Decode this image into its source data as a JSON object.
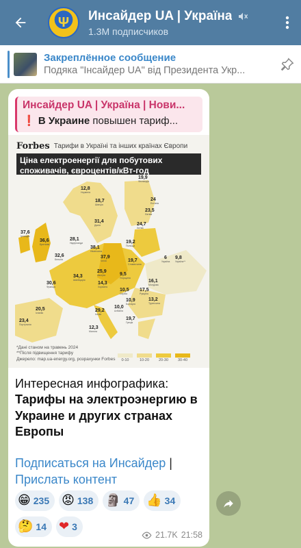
{
  "header": {
    "title": "Инсайдер UA | Україна",
    "subtitle": "1.3M подписчиков"
  },
  "pinned": {
    "title": "Закреплённое сообщение",
    "body": "Подяка \"Інсайдер UA\" від Президента Укр..."
  },
  "post": {
    "reply": {
      "title": "Инсайдер UA | Україна | Нови...",
      "emoji": "❗",
      "bold": "В Украине",
      "text": " повышен тариф..."
    },
    "infographic": {
      "brand": "Forbes",
      "subtitle": "Тарифи в Україні та інших країнах Європи",
      "title": "Ціна електроенергії для побутових споживачів, євроцентів/кВт-год",
      "note1": "*Дані станом на травень 2024",
      "note2": "**Після підвищення тарифу",
      "source": "Джерело: map.ua-energy.org, розрахунки Forbes",
      "legend": [
        "0-10",
        "10-20",
        "20-30",
        "30-40"
      ],
      "legend_colors": [
        "#efe9c8",
        "#f0dc8c",
        "#edca3e",
        "#e8b81a"
      ],
      "values": [
        {
          "v": "19,9",
          "c": "Фінляндія"
        },
        {
          "v": "12,8",
          "c": "Норвегія"
        },
        {
          "v": "18,7",
          "c": "Швеція"
        },
        {
          "v": "24",
          "c": "Естонія"
        },
        {
          "v": "23,5",
          "c": "Латвія"
        },
        {
          "v": "24,7",
          "c": "Литва"
        },
        {
          "v": "31,4",
          "c": "Данія"
        },
        {
          "v": "37,6",
          "c": "Ірландія"
        },
        {
          "v": "36,6",
          "c": "Британія"
        },
        {
          "v": "28,1",
          "c": "Нідерланди"
        },
        {
          "v": "38,1",
          "c": "Німеччина"
        },
        {
          "v": "32,6",
          "c": "Бельгія"
        },
        {
          "v": "19,2",
          "c": "Польща"
        },
        {
          "v": "37,9",
          "c": "Чехія"
        },
        {
          "v": "19,7",
          "c": "Словаччина"
        },
        {
          "v": "6",
          "c": "Україна"
        },
        {
          "v": "9,8",
          "c": "Україна**"
        },
        {
          "v": "30,6",
          "c": "Франція"
        },
        {
          "v": "34,3",
          "c": "Швейцарія"
        },
        {
          "v": "25,9",
          "c": "Австрія"
        },
        {
          "v": "9,5",
          "c": "Угорщина"
        },
        {
          "v": "16,1",
          "c": "Молдова"
        },
        {
          "v": "17,5",
          "c": "Румунія"
        },
        {
          "v": "14,3",
          "c": "Хорватія"
        },
        {
          "v": "10,5",
          "c": "Сербія"
        },
        {
          "v": "10,9",
          "c": "Болгарія"
        },
        {
          "v": "13,2",
          "c": "Туреччина"
        },
        {
          "v": "20,5",
          "c": "Іспанія"
        },
        {
          "v": "23,4",
          "c": "Португалія"
        },
        {
          "v": "29,2",
          "c": "Італія"
        },
        {
          "v": "10,0",
          "c": "Албанія"
        },
        {
          "v": "19,7",
          "c": "Греція"
        },
        {
          "v": "12,3",
          "c": "Мальта"
        }
      ]
    },
    "text_intro": "Интересная инфографика:",
    "text_bold": "Тарифы на электроэнергию в Украине и других странах Европы",
    "link_subscribe": "Подписаться на Инсайдер",
    "link_separator": "|",
    "link_send": "Прислать контент",
    "reactions": [
      {
        "emoji": "😁",
        "count": "235"
      },
      {
        "emoji": "😡",
        "count": "138"
      },
      {
        "emoji": "🗿",
        "count": "47"
      },
      {
        "emoji": "👍",
        "count": "34"
      },
      {
        "emoji": "🤔",
        "count": "14"
      },
      {
        "emoji": "❤",
        "count": "3"
      }
    ],
    "views": "21.7K",
    "time": "21:58"
  }
}
